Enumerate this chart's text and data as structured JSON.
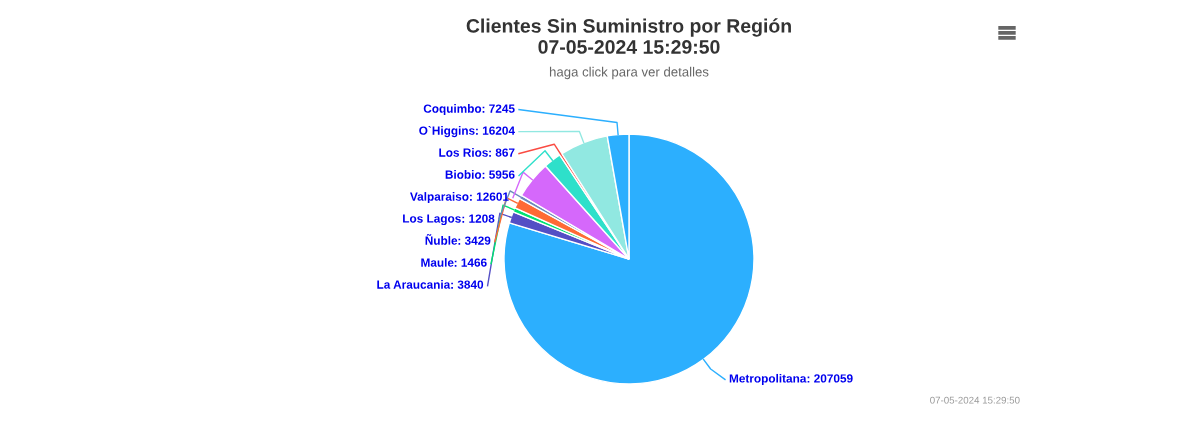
{
  "chart_data": {
    "type": "pie",
    "title": "Clientes Sin Suministro por Región\n07-05-2024 15:29:50",
    "subtitle": "haga click para ver detalles",
    "categories": [
      "Metropolitana",
      "La Araucania",
      "Maule",
      "Ñuble",
      "Los Lagos",
      "Valparaiso",
      "Biobio",
      "Los Rios",
      "O`Higgins",
      "Coquimbo"
    ],
    "values": [
      207059,
      3840,
      1466,
      3429,
      1208,
      12601,
      5956,
      867,
      16204,
      7245
    ],
    "colors": [
      "#2caffe",
      "#544fc5",
      "#00e272",
      "#fe6a35",
      "#6b8abc",
      "#d568fb",
      "#2ee0ca",
      "#fa4b42",
      "#91e8e1",
      "#2caffe"
    ],
    "value_labels": [
      ": 207059",
      ": 3840",
      ": 1466",
      ": 3429",
      ": 1208",
      ": 12601",
      ": 5956",
      ": 867",
      ": 16204",
      ": 7245"
    ],
    "legend": false,
    "annotations": [
      "07-05-2024 15:29:50"
    ]
  }
}
